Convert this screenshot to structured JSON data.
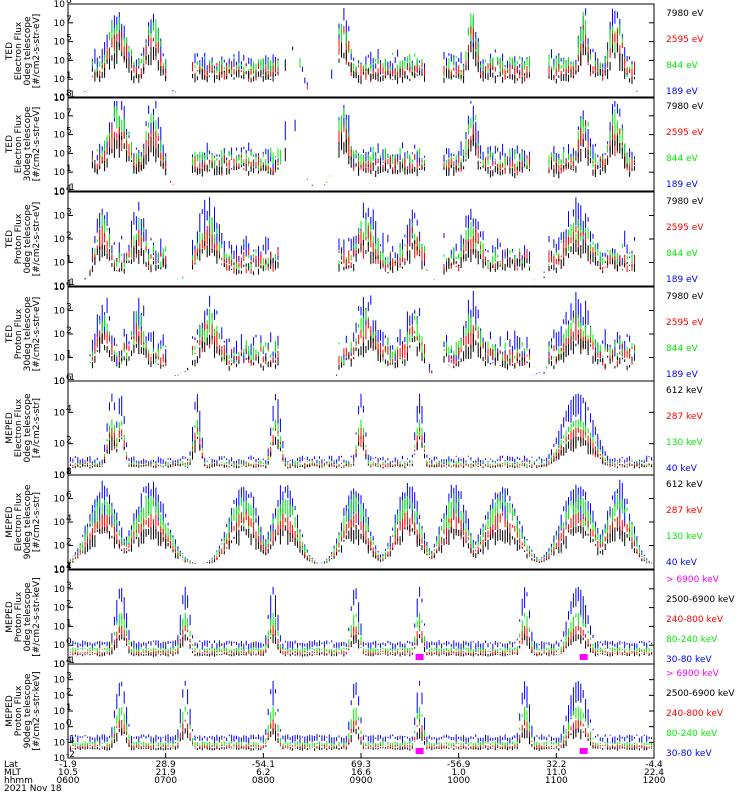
{
  "chart_data": {
    "type": "line",
    "date": "2021 Nov 18",
    "colors": {
      "blue": "#0000ff",
      "red": "#ff0000",
      "green": "#00ee00",
      "black": "#000000",
      "magenta": "#ff00ff"
    },
    "panels": [
      {
        "ylabel": [
          "TED",
          "Electron Flux",
          "0deg telescope",
          "[#/cm2-s-str-eV]"
        ],
        "yticks": [
          "10",
          "10",
          "10",
          "10",
          "10",
          "10"
        ],
        "yexps": [
          "-1",
          "1",
          "3",
          "5",
          "7",
          "8"
        ],
        "legend": [
          {
            "text": "7980 eV",
            "color": "black"
          },
          {
            "text": "2595 eV",
            "color": "red"
          },
          {
            "text": "844 eV",
            "color": "green"
          },
          {
            "text": "189 eV",
            "color": "blue"
          }
        ],
        "mode": "ted"
      },
      {
        "ylabel": [
          "TED",
          "Electron Flux",
          "30deg telescope",
          "[#/cm2-s-str-eV]"
        ],
        "yticks": [
          "10",
          "10",
          "10",
          "10",
          "10",
          "10"
        ],
        "yexps": [
          "-1",
          "1",
          "3",
          "5",
          "7",
          "8"
        ],
        "legend": [
          {
            "text": "7980 eV",
            "color": "black"
          },
          {
            "text": "2595 eV",
            "color": "red"
          },
          {
            "text": "844 eV",
            "color": "green"
          },
          {
            "text": "189 eV",
            "color": "blue"
          }
        ],
        "mode": "ted"
      },
      {
        "ylabel": [
          "TED",
          "Proton Flux",
          "0deg telescope",
          "[#/cm2-s-str-eV]"
        ],
        "yticks": [
          "10",
          "10",
          "10",
          "10",
          "10"
        ],
        "yexps": [
          "-1",
          "1",
          "2",
          "3",
          "4"
        ],
        "legend": [
          {
            "text": "7980 eV",
            "color": "black"
          },
          {
            "text": "2595 eV",
            "color": "red"
          },
          {
            "text": "844 eV",
            "color": "green"
          },
          {
            "text": "189 eV",
            "color": "blue"
          }
        ],
        "mode": "tedp"
      },
      {
        "ylabel": [
          "TED",
          "Proton Flux",
          "30deg telescope",
          "[#/cm2-s-str-eV]"
        ],
        "yticks": [
          "10",
          "10",
          "10",
          "10",
          "10"
        ],
        "yexps": [
          "-1",
          "1",
          "2",
          "3",
          "4"
        ],
        "legend": [
          {
            "text": "7980 eV",
            "color": "black"
          },
          {
            "text": "2595 eV",
            "color": "red"
          },
          {
            "text": "844 eV",
            "color": "green"
          },
          {
            "text": "189 eV",
            "color": "blue"
          }
        ],
        "mode": "tedp"
      },
      {
        "ylabel": [
          "MEPED",
          "Electron Flux",
          "0deg telescope",
          "[#/cm2-s-str]"
        ],
        "yticks": [
          "10",
          "10",
          "10",
          "10"
        ],
        "yexps": [
          "1",
          "2",
          "4",
          "6"
        ],
        "legend": [
          {
            "text": "612 keV",
            "color": "black"
          },
          {
            "text": "287 keV",
            "color": "red"
          },
          {
            "text": "130 keV",
            "color": "green"
          },
          {
            "text": "40 keV",
            "color": "blue"
          }
        ],
        "mode": "mepe0"
      },
      {
        "ylabel": [
          "MEPED",
          "Electron Flux",
          "90deg telescope",
          "[#/cm2-s-str]"
        ],
        "yticks": [
          "10",
          "10",
          "10",
          "10",
          "10"
        ],
        "yexps": [
          "1",
          "2",
          "4",
          "6",
          "8"
        ],
        "legend": [
          {
            "text": "612 keV",
            "color": "black"
          },
          {
            "text": "287 keV",
            "color": "red"
          },
          {
            "text": "130 keV",
            "color": "green"
          },
          {
            "text": "40 keV",
            "color": "blue"
          }
        ],
        "mode": "mepe90"
      },
      {
        "ylabel": [
          "MEPED",
          "Proton Flux",
          "0deg telescope",
          "[#/cm2-s-str-keV]"
        ],
        "yticks": [
          "10",
          "10",
          "10",
          "10",
          "10",
          "10"
        ],
        "yexps": [
          "-1",
          "0",
          "1",
          "2",
          "3",
          "4"
        ],
        "legend": [
          {
            "text": "> 6900 keV",
            "color": "magenta"
          },
          {
            "text": "2500-6900 keV",
            "color": "black"
          },
          {
            "text": "240-800 keV",
            "color": "red"
          },
          {
            "text": "80-240 keV",
            "color": "green"
          },
          {
            "text": "30-80 keV",
            "color": "blue"
          }
        ],
        "mode": "mepp"
      },
      {
        "ylabel": [
          "MEPED",
          "Proton Flux",
          "90deg telescope",
          "[#/cm2-s-str-keV]"
        ],
        "yticks": [
          "10",
          "10",
          "10",
          "10",
          "10",
          "10",
          "10"
        ],
        "yexps": [
          "-2",
          "-1",
          "0",
          "1",
          "2",
          "3",
          "4"
        ],
        "legend": [
          {
            "text": "> 6900 keV",
            "color": "magenta"
          },
          {
            "text": "2500-6900 keV",
            "color": "black"
          },
          {
            "text": "240-800 keV",
            "color": "red"
          },
          {
            "text": "80-240 keV",
            "color": "green"
          },
          {
            "text": "30-80 keV",
            "color": "blue"
          }
        ],
        "mode": "mepp90"
      }
    ],
    "xaxis": {
      "row_labels": [
        "Lat",
        "MLT",
        "hhmm"
      ],
      "lat": [
        "-1.9",
        "28.9",
        "-54.1",
        "69.3",
        "-56.9",
        "32.2",
        "-4.4"
      ],
      "mlt": [
        "10.5",
        "21.9",
        "6.2",
        "16.6",
        "1.0",
        "11.0",
        "22.4"
      ],
      "hhmm": [
        "0600",
        "0700",
        "0800",
        "0900",
        "1000",
        "1100",
        "1200"
      ]
    }
  }
}
